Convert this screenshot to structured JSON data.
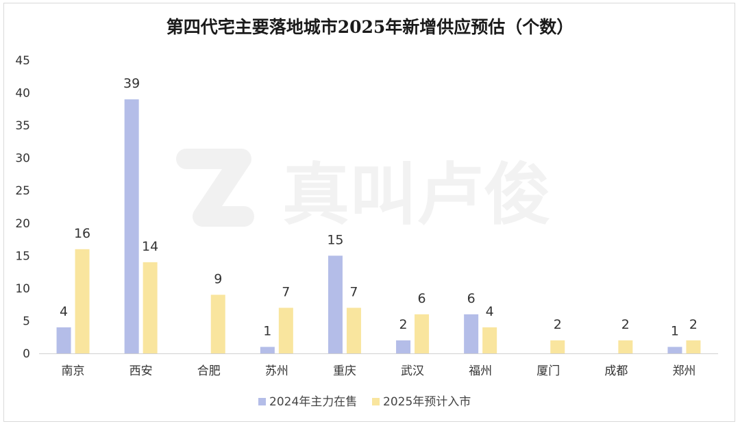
{
  "chart_data": {
    "type": "bar",
    "title": "第四代宅主要落地城市2025年新增供应预估（个数）",
    "categories": [
      "南京",
      "西安",
      "合肥",
      "苏州",
      "重庆",
      "武汉",
      "福州",
      "厦门",
      "成都",
      "郑州"
    ],
    "series": [
      {
        "name": "2024年主力在售",
        "color": "#b4bde8",
        "values": [
          4,
          39,
          null,
          1,
          15,
          2,
          6,
          null,
          null,
          1
        ]
      },
      {
        "name": "2025年预计入市",
        "color": "#f9e59e",
        "values": [
          16,
          14,
          9,
          7,
          7,
          6,
          4,
          2,
          2,
          2
        ]
      }
    ],
    "yticks": [
      0,
      5,
      10,
      15,
      20,
      25,
      30,
      35,
      40,
      45
    ],
    "ylim": [
      0,
      45
    ],
    "grid": false,
    "legend_position": "bottom-center",
    "watermark": "真叫卢俊"
  }
}
